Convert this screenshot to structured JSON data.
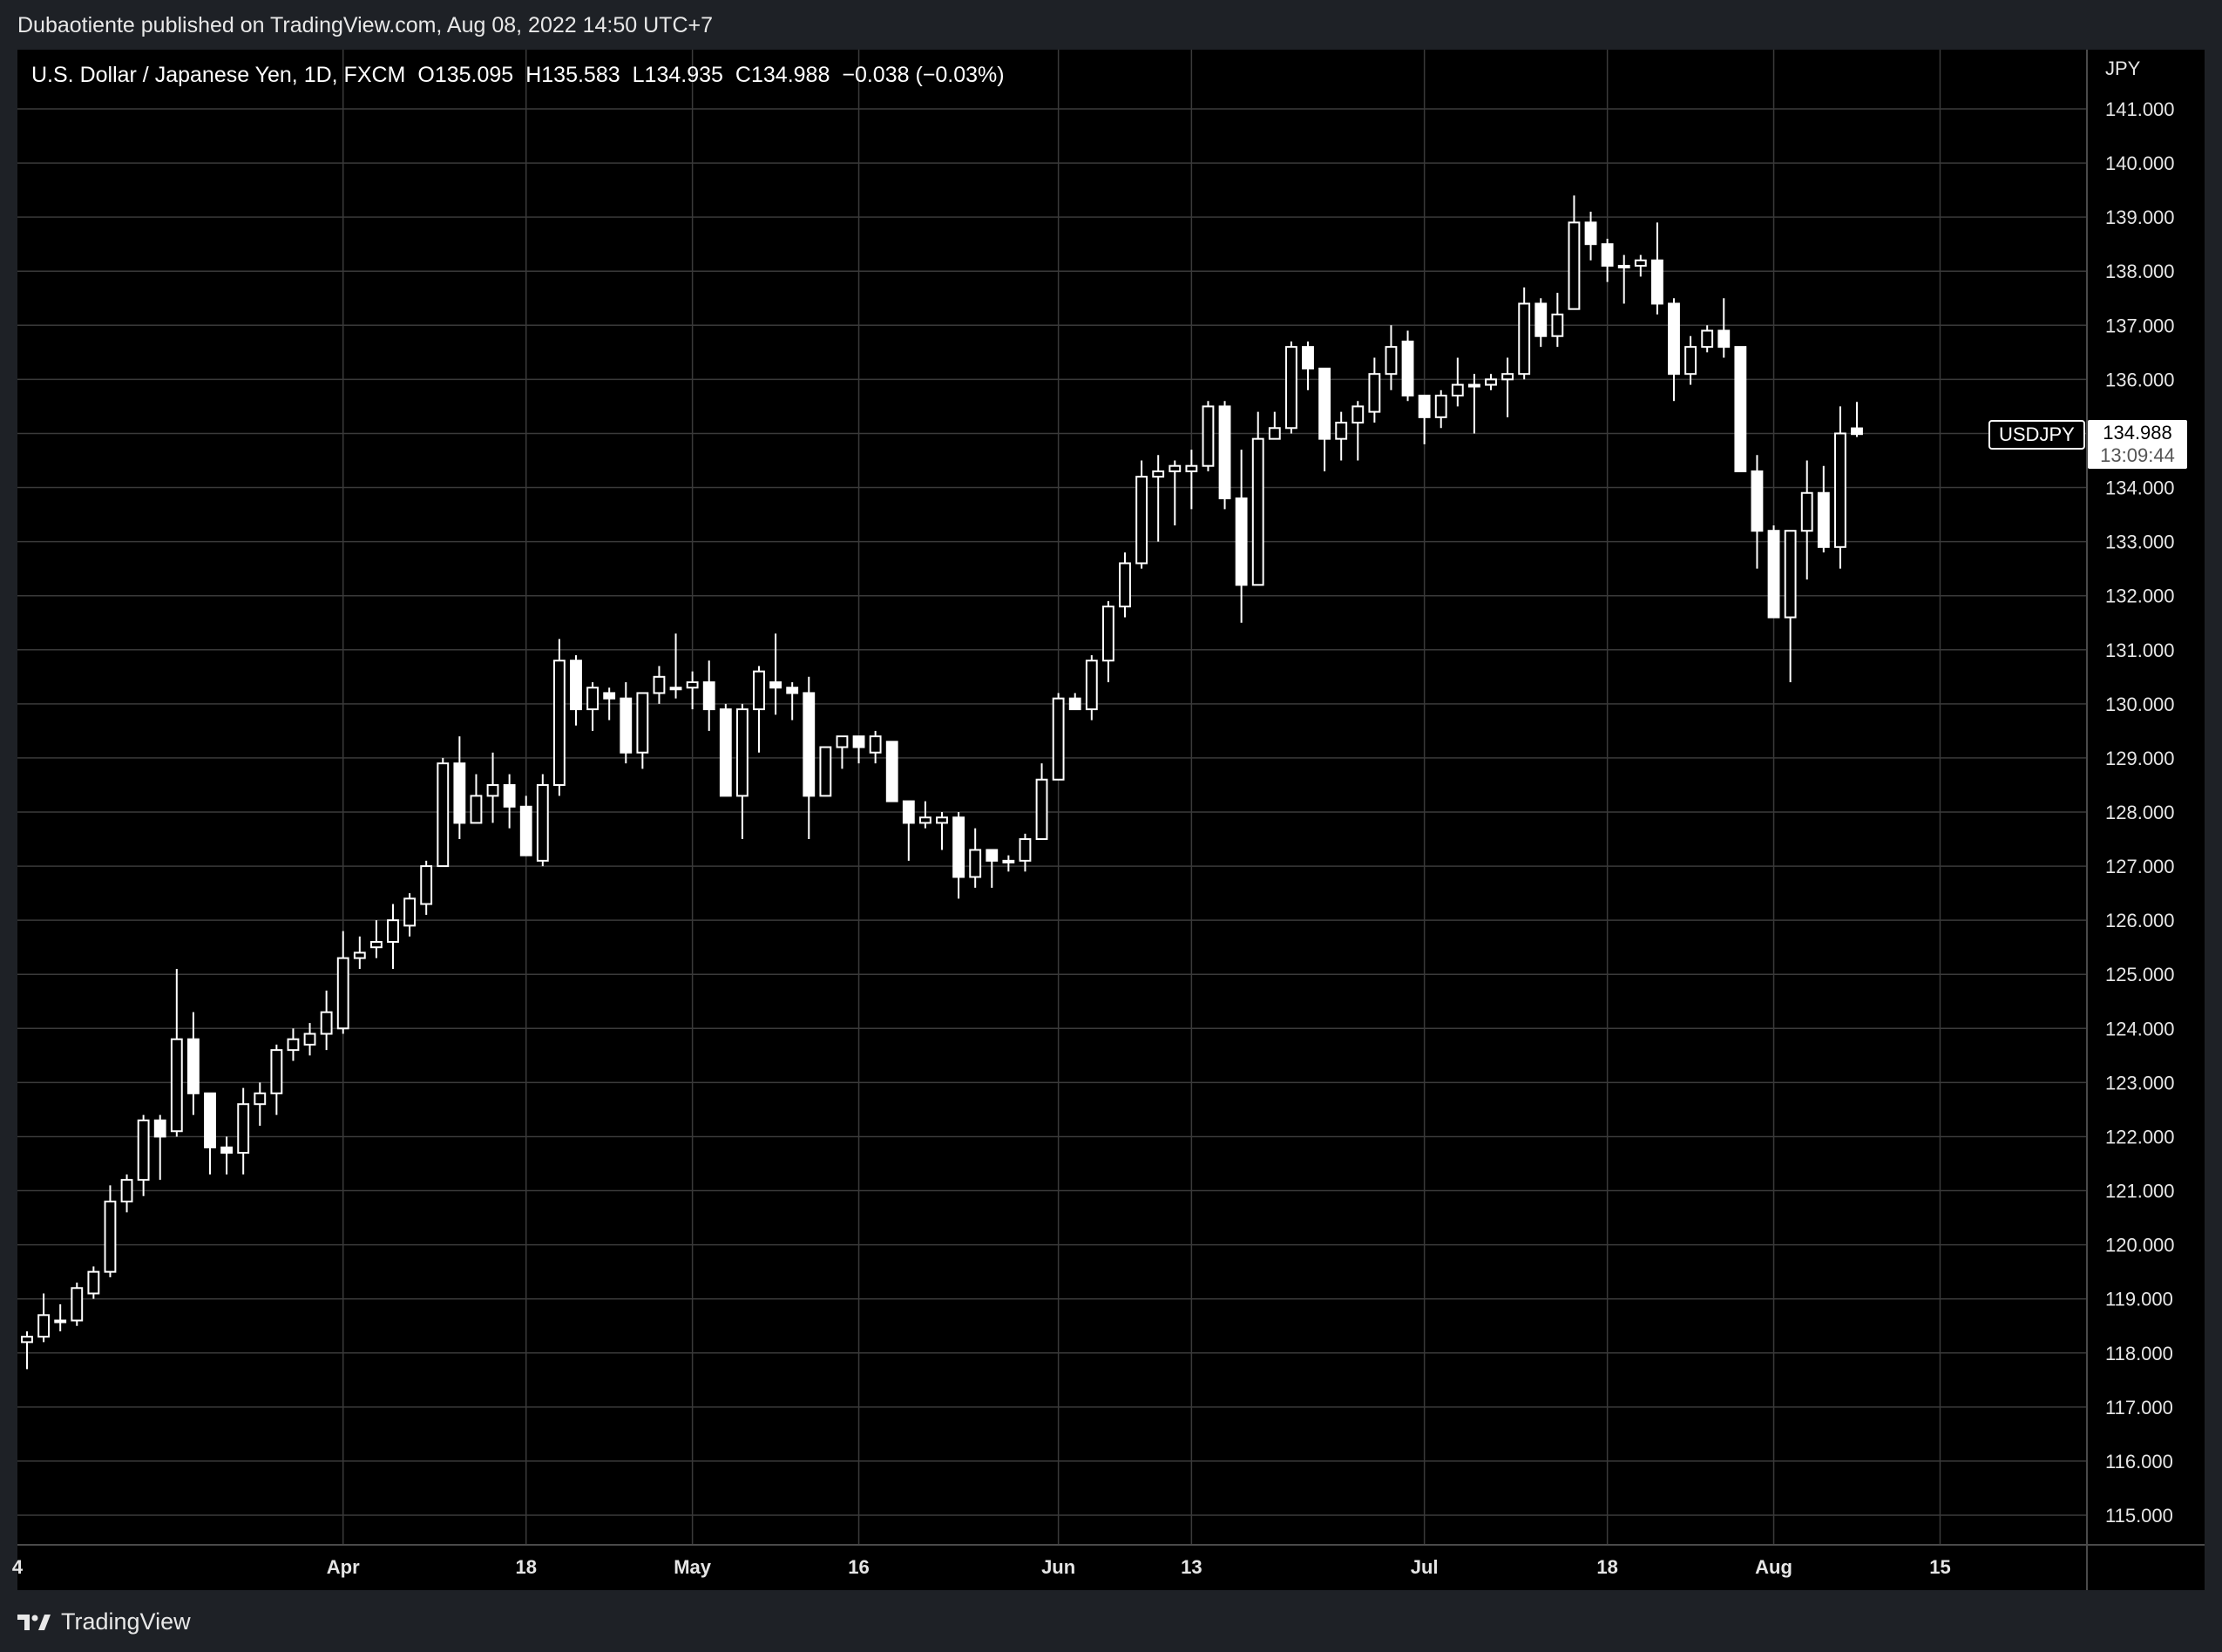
{
  "header": {
    "attribution": "Dubaotiente published on TradingView.com, Aug 08, 2022 14:50 UTC+7"
  },
  "legend": {
    "title": "U.S. Dollar / Japanese Yen, 1D, FXCM",
    "open": "O135.095",
    "high": "H135.583",
    "low": "L134.935",
    "close": "C134.988",
    "change": "−0.038 (−0.03%)"
  },
  "price_axis": {
    "currency": "JPY",
    "symbol_tag": "USDJPY",
    "last_price": "134.988",
    "countdown": "13:09:44"
  },
  "footer": {
    "brand": "TradingView"
  },
  "colors": {
    "background": "#000000",
    "grid": "#3a3a3a",
    "candle": "#ffffff",
    "chrome": "#1e2126"
  },
  "chart_data": {
    "type": "candlestick",
    "title": "U.S. Dollar / Japanese Yen, 1D, FXCM",
    "ylabel": "JPY",
    "ylim": [
      114.5,
      141.6
    ],
    "grid": true,
    "y_ticks": [
      "141.000",
      "140.000",
      "139.000",
      "138.000",
      "137.000",
      "136.000",
      "135.000",
      "134.000",
      "133.000",
      "132.000",
      "131.000",
      "130.000",
      "129.000",
      "128.000",
      "127.000",
      "126.000",
      "125.000",
      "124.000",
      "123.000",
      "122.000",
      "121.000",
      "120.000",
      "119.000",
      "118.000",
      "117.000",
      "116.000",
      "115.000"
    ],
    "x_ticks": [
      {
        "label": "4",
        "date": "2022-03-04"
      },
      {
        "label": "Apr",
        "date": "2022-04-01"
      },
      {
        "label": "18",
        "date": "2022-04-18"
      },
      {
        "label": "May",
        "date": "2022-05-02"
      },
      {
        "label": "16",
        "date": "2022-05-16"
      },
      {
        "label": "Jun",
        "date": "2022-06-01"
      },
      {
        "label": "13",
        "date": "2022-06-13"
      },
      {
        "label": "Jul",
        "date": "2022-07-01"
      },
      {
        "label": "18",
        "date": "2022-07-18"
      },
      {
        "label": "Aug",
        "date": "2022-08-01"
      },
      {
        "label": "15",
        "date": "2022-08-15"
      }
    ],
    "candles": [
      {
        "date": "2022-03-07",
        "o": 118.2,
        "h": 118.4,
        "l": 117.7,
        "c": 118.3
      },
      {
        "date": "2022-03-08",
        "o": 118.3,
        "h": 119.1,
        "l": 118.2,
        "c": 118.7
      },
      {
        "date": "2022-03-09",
        "o": 118.6,
        "h": 118.9,
        "l": 118.4,
        "c": 118.6
      },
      {
        "date": "2022-03-10",
        "o": 118.6,
        "h": 119.3,
        "l": 118.5,
        "c": 119.2
      },
      {
        "date": "2022-03-11",
        "o": 119.1,
        "h": 119.6,
        "l": 119.0,
        "c": 119.5
      },
      {
        "date": "2022-03-14",
        "o": 119.5,
        "h": 121.1,
        "l": 119.4,
        "c": 120.8
      },
      {
        "date": "2022-03-15",
        "o": 120.8,
        "h": 121.3,
        "l": 120.6,
        "c": 121.2
      },
      {
        "date": "2022-03-16",
        "o": 121.2,
        "h": 122.4,
        "l": 120.9,
        "c": 122.3
      },
      {
        "date": "2022-03-17",
        "o": 122.3,
        "h": 122.4,
        "l": 121.2,
        "c": 122.0
      },
      {
        "date": "2022-03-18",
        "o": 122.1,
        "h": 125.1,
        "l": 122.0,
        "c": 123.8
      },
      {
        "date": "2022-03-21",
        "o": 123.8,
        "h": 124.3,
        "l": 122.4,
        "c": 122.8
      },
      {
        "date": "2022-03-22",
        "o": 122.8,
        "h": 122.8,
        "l": 121.3,
        "c": 121.8
      },
      {
        "date": "2022-03-23",
        "o": 121.8,
        "h": 122.0,
        "l": 121.3,
        "c": 121.7
      },
      {
        "date": "2022-03-24",
        "o": 121.7,
        "h": 122.9,
        "l": 121.3,
        "c": 122.6
      },
      {
        "date": "2022-03-25",
        "o": 122.6,
        "h": 123.0,
        "l": 122.2,
        "c": 122.8
      },
      {
        "date": "2022-03-28",
        "o": 122.8,
        "h": 123.7,
        "l": 122.4,
        "c": 123.6
      },
      {
        "date": "2022-03-29",
        "o": 123.6,
        "h": 124.0,
        "l": 123.4,
        "c": 123.8
      },
      {
        "date": "2022-03-30",
        "o": 123.7,
        "h": 124.1,
        "l": 123.5,
        "c": 123.9
      },
      {
        "date": "2022-03-31",
        "o": 123.9,
        "h": 124.7,
        "l": 123.6,
        "c": 124.3
      },
      {
        "date": "2022-04-01",
        "o": 124.0,
        "h": 125.8,
        "l": 123.9,
        "c": 125.3
      },
      {
        "date": "2022-04-04",
        "o": 125.3,
        "h": 125.7,
        "l": 125.1,
        "c": 125.4
      },
      {
        "date": "2022-04-05",
        "o": 125.5,
        "h": 126.0,
        "l": 125.3,
        "c": 125.6
      },
      {
        "date": "2022-04-06",
        "o": 125.6,
        "h": 126.3,
        "l": 125.1,
        "c": 126.0
      },
      {
        "date": "2022-04-07",
        "o": 125.9,
        "h": 126.5,
        "l": 125.7,
        "c": 126.4
      },
      {
        "date": "2022-04-08",
        "o": 126.3,
        "h": 127.1,
        "l": 126.1,
        "c": 127.0
      },
      {
        "date": "2022-04-11",
        "o": 127.0,
        "h": 129.0,
        "l": 127.0,
        "c": 128.9
      },
      {
        "date": "2022-04-12",
        "o": 128.9,
        "h": 129.4,
        "l": 127.5,
        "c": 127.8
      },
      {
        "date": "2022-04-13",
        "o": 127.8,
        "h": 128.7,
        "l": 127.8,
        "c": 128.3
      },
      {
        "date": "2022-04-14",
        "o": 128.3,
        "h": 129.1,
        "l": 127.8,
        "c": 128.5
      },
      {
        "date": "2022-04-15",
        "o": 128.5,
        "h": 128.7,
        "l": 127.7,
        "c": 128.1
      },
      {
        "date": "2022-04-18",
        "o": 128.1,
        "h": 128.3,
        "l": 127.2,
        "c": 127.2
      },
      {
        "date": "2022-04-19",
        "o": 127.1,
        "h": 128.7,
        "l": 127.0,
        "c": 128.5
      },
      {
        "date": "2022-04-20",
        "o": 128.5,
        "h": 131.2,
        "l": 128.3,
        "c": 130.8
      },
      {
        "date": "2022-04-21",
        "o": 130.8,
        "h": 130.9,
        "l": 129.6,
        "c": 129.9
      },
      {
        "date": "2022-04-22",
        "o": 129.9,
        "h": 130.4,
        "l": 129.5,
        "c": 130.3
      },
      {
        "date": "2022-04-25",
        "o": 130.2,
        "h": 130.3,
        "l": 129.7,
        "c": 130.1
      },
      {
        "date": "2022-04-26",
        "o": 130.1,
        "h": 130.4,
        "l": 128.9,
        "c": 129.1
      },
      {
        "date": "2022-04-27",
        "o": 129.1,
        "h": 130.2,
        "l": 128.8,
        "c": 130.2
      },
      {
        "date": "2022-04-28",
        "o": 130.2,
        "h": 130.7,
        "l": 130.0,
        "c": 130.5
      },
      {
        "date": "2022-04-29",
        "o": 130.3,
        "h": 131.3,
        "l": 130.1,
        "c": 130.3
      },
      {
        "date": "2022-05-02",
        "o": 130.3,
        "h": 130.6,
        "l": 129.9,
        "c": 130.4
      },
      {
        "date": "2022-05-03",
        "o": 130.4,
        "h": 130.8,
        "l": 129.5,
        "c": 129.9
      },
      {
        "date": "2022-05-04",
        "o": 129.9,
        "h": 130.0,
        "l": 128.5,
        "c": 128.3
      },
      {
        "date": "2022-05-05",
        "o": 128.3,
        "h": 130.0,
        "l": 127.5,
        "c": 129.9
      },
      {
        "date": "2022-05-06",
        "o": 129.9,
        "h": 130.7,
        "l": 129.1,
        "c": 130.6
      },
      {
        "date": "2022-05-09",
        "o": 130.4,
        "h": 131.3,
        "l": 129.8,
        "c": 130.3
      },
      {
        "date": "2022-05-10",
        "o": 130.3,
        "h": 130.4,
        "l": 129.7,
        "c": 130.2
      },
      {
        "date": "2022-05-11",
        "o": 130.2,
        "h": 130.5,
        "l": 127.5,
        "c": 128.3
      },
      {
        "date": "2022-05-12",
        "o": 128.3,
        "h": 129.1,
        "l": 128.3,
        "c": 129.2
      },
      {
        "date": "2022-05-13",
        "o": 129.2,
        "h": 129.4,
        "l": 128.8,
        "c": 129.4
      },
      {
        "date": "2022-05-16",
        "o": 129.4,
        "h": 129.4,
        "l": 128.9,
        "c": 129.2
      },
      {
        "date": "2022-05-17",
        "o": 129.1,
        "h": 129.5,
        "l": 128.9,
        "c": 129.4
      },
      {
        "date": "2022-05-18",
        "o": 129.3,
        "h": 129.3,
        "l": 128.2,
        "c": 128.2
      },
      {
        "date": "2022-05-19",
        "o": 128.2,
        "h": 128.2,
        "l": 127.1,
        "c": 127.8
      },
      {
        "date": "2022-05-20",
        "o": 127.8,
        "h": 128.2,
        "l": 127.7,
        "c": 127.9
      },
      {
        "date": "2022-05-23",
        "o": 127.8,
        "h": 128.0,
        "l": 127.3,
        "c": 127.9
      },
      {
        "date": "2022-05-24",
        "o": 127.9,
        "h": 128.0,
        "l": 126.4,
        "c": 126.8
      },
      {
        "date": "2022-05-25",
        "o": 126.8,
        "h": 127.7,
        "l": 126.6,
        "c": 127.3
      },
      {
        "date": "2022-05-26",
        "o": 127.3,
        "h": 127.3,
        "l": 126.6,
        "c": 127.1
      },
      {
        "date": "2022-05-27",
        "o": 127.1,
        "h": 127.2,
        "l": 126.9,
        "c": 127.1
      },
      {
        "date": "2022-05-30",
        "o": 127.1,
        "h": 127.6,
        "l": 126.9,
        "c": 127.5
      },
      {
        "date": "2022-05-31",
        "o": 127.5,
        "h": 128.9,
        "l": 127.5,
        "c": 128.6
      },
      {
        "date": "2022-06-01",
        "o": 128.6,
        "h": 130.2,
        "l": 128.6,
        "c": 130.1
      },
      {
        "date": "2022-06-02",
        "o": 130.1,
        "h": 130.2,
        "l": 129.9,
        "c": 129.9
      },
      {
        "date": "2022-06-03",
        "o": 129.9,
        "h": 130.9,
        "l": 129.7,
        "c": 130.8
      },
      {
        "date": "2022-06-06",
        "o": 130.8,
        "h": 131.9,
        "l": 130.4,
        "c": 131.8
      },
      {
        "date": "2022-06-07",
        "o": 131.8,
        "h": 132.8,
        "l": 131.6,
        "c": 132.6
      },
      {
        "date": "2022-06-08",
        "o": 132.6,
        "h": 134.5,
        "l": 132.5,
        "c": 134.2
      },
      {
        "date": "2022-06-09",
        "o": 134.2,
        "h": 134.6,
        "l": 133.0,
        "c": 134.3
      },
      {
        "date": "2022-06-10",
        "o": 134.3,
        "h": 134.5,
        "l": 133.3,
        "c": 134.4
      },
      {
        "date": "2022-06-13",
        "o": 134.3,
        "h": 134.7,
        "l": 133.6,
        "c": 134.4
      },
      {
        "date": "2022-06-14",
        "o": 134.4,
        "h": 135.6,
        "l": 134.3,
        "c": 135.5
      },
      {
        "date": "2022-06-15",
        "o": 135.5,
        "h": 135.6,
        "l": 133.6,
        "c": 133.8
      },
      {
        "date": "2022-06-16",
        "o": 133.8,
        "h": 134.7,
        "l": 131.5,
        "c": 132.2
      },
      {
        "date": "2022-06-17",
        "o": 132.2,
        "h": 135.4,
        "l": 132.2,
        "c": 134.9
      },
      {
        "date": "2022-06-20",
        "o": 134.9,
        "h": 135.4,
        "l": 134.9,
        "c": 135.1
      },
      {
        "date": "2022-06-21",
        "o": 135.1,
        "h": 136.7,
        "l": 135.0,
        "c": 136.6
      },
      {
        "date": "2022-06-22",
        "o": 136.6,
        "h": 136.7,
        "l": 135.8,
        "c": 136.2
      },
      {
        "date": "2022-06-23",
        "o": 136.2,
        "h": 136.2,
        "l": 134.3,
        "c": 134.9
      },
      {
        "date": "2022-06-24",
        "o": 134.9,
        "h": 135.4,
        "l": 134.5,
        "c": 135.2
      },
      {
        "date": "2022-06-27",
        "o": 135.2,
        "h": 135.6,
        "l": 134.5,
        "c": 135.5
      },
      {
        "date": "2022-06-28",
        "o": 135.4,
        "h": 136.4,
        "l": 135.2,
        "c": 136.1
      },
      {
        "date": "2022-06-29",
        "o": 136.1,
        "h": 137.0,
        "l": 135.8,
        "c": 136.6
      },
      {
        "date": "2022-06-30",
        "o": 136.7,
        "h": 136.9,
        "l": 135.6,
        "c": 135.7
      },
      {
        "date": "2022-07-01",
        "o": 135.7,
        "h": 135.7,
        "l": 134.8,
        "c": 135.3
      },
      {
        "date": "2022-07-04",
        "o": 135.3,
        "h": 135.8,
        "l": 135.1,
        "c": 135.7
      },
      {
        "date": "2022-07-05",
        "o": 135.7,
        "h": 136.4,
        "l": 135.5,
        "c": 135.9
      },
      {
        "date": "2022-07-06",
        "o": 135.9,
        "h": 136.1,
        "l": 135.0,
        "c": 135.9
      },
      {
        "date": "2022-07-07",
        "o": 135.9,
        "h": 136.1,
        "l": 135.8,
        "c": 136.0
      },
      {
        "date": "2022-07-08",
        "o": 136.0,
        "h": 136.4,
        "l": 135.3,
        "c": 136.1
      },
      {
        "date": "2022-07-11",
        "o": 136.1,
        "h": 137.7,
        "l": 136.0,
        "c": 137.4
      },
      {
        "date": "2022-07-12",
        "o": 137.4,
        "h": 137.5,
        "l": 136.6,
        "c": 136.8
      },
      {
        "date": "2022-07-13",
        "o": 136.8,
        "h": 137.6,
        "l": 136.6,
        "c": 137.2
      },
      {
        "date": "2022-07-14",
        "o": 137.3,
        "h": 139.4,
        "l": 137.3,
        "c": 138.9
      },
      {
        "date": "2022-07-15",
        "o": 138.9,
        "h": 139.1,
        "l": 138.2,
        "c": 138.5
      },
      {
        "date": "2022-07-18",
        "o": 138.5,
        "h": 138.6,
        "l": 137.8,
        "c": 138.1
      },
      {
        "date": "2022-07-19",
        "o": 138.1,
        "h": 138.3,
        "l": 137.4,
        "c": 138.1
      },
      {
        "date": "2022-07-20",
        "o": 138.1,
        "h": 138.3,
        "l": 137.9,
        "c": 138.2
      },
      {
        "date": "2022-07-21",
        "o": 138.2,
        "h": 138.9,
        "l": 137.2,
        "c": 137.4
      },
      {
        "date": "2022-07-22",
        "o": 137.4,
        "h": 137.5,
        "l": 135.6,
        "c": 136.1
      },
      {
        "date": "2022-07-25",
        "o": 136.1,
        "h": 136.8,
        "l": 135.9,
        "c": 136.6
      },
      {
        "date": "2022-07-26",
        "o": 136.6,
        "h": 137.0,
        "l": 136.5,
        "c": 136.9
      },
      {
        "date": "2022-07-27",
        "o": 136.9,
        "h": 137.5,
        "l": 136.4,
        "c": 136.6
      },
      {
        "date": "2022-07-28",
        "o": 136.6,
        "h": 136.6,
        "l": 134.3,
        "c": 134.3
      },
      {
        "date": "2022-07-29",
        "o": 134.3,
        "h": 134.6,
        "l": 132.5,
        "c": 133.2
      },
      {
        "date": "2022-08-01",
        "o": 133.2,
        "h": 133.3,
        "l": 131.6,
        "c": 131.6
      },
      {
        "date": "2022-08-02",
        "o": 131.6,
        "h": 133.2,
        "l": 130.4,
        "c": 133.2
      },
      {
        "date": "2022-08-03",
        "o": 133.2,
        "h": 134.5,
        "l": 132.3,
        "c": 133.9
      },
      {
        "date": "2022-08-04",
        "o": 133.9,
        "h": 134.4,
        "l": 132.8,
        "c": 132.9
      },
      {
        "date": "2022-08-05",
        "o": 132.9,
        "h": 135.5,
        "l": 132.5,
        "c": 135.0
      },
      {
        "date": "2022-08-08",
        "o": 135.095,
        "h": 135.583,
        "l": 134.935,
        "c": 134.988
      }
    ]
  }
}
